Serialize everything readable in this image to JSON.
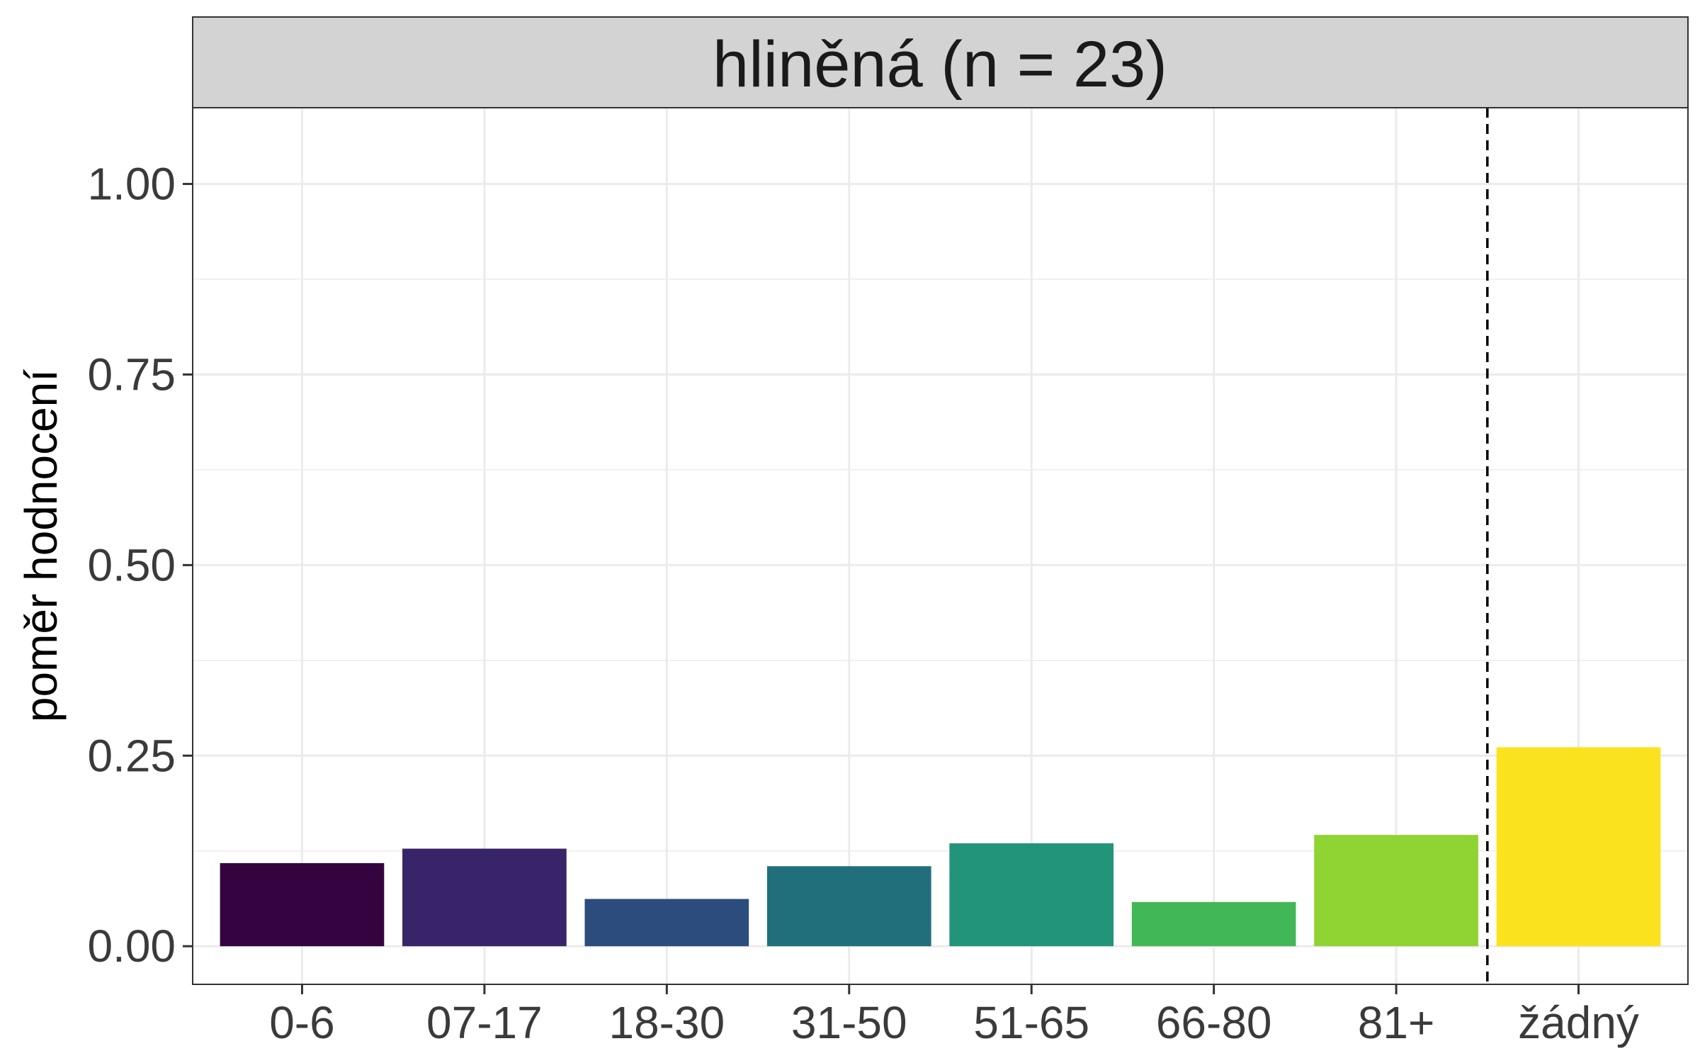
{
  "chart_data": {
    "type": "bar",
    "facet_title": "hliněná (n = 23)",
    "xlabel": "",
    "ylabel": "poměr hodnocení",
    "ylim": [
      -0.05,
      1.1
    ],
    "y_ticks": [
      "0.00",
      "0.25",
      "0.50",
      "0.75",
      "1.00"
    ],
    "y_tick_values": [
      0,
      0.25,
      0.5,
      0.75,
      1.0
    ],
    "categories": [
      "0-6",
      "07-17",
      "18-30",
      "31-50",
      "51-65",
      "66-80",
      "81+",
      "žádný"
    ],
    "values": [
      0.109,
      0.128,
      0.062,
      0.105,
      0.135,
      0.058,
      0.146,
      0.261
    ],
    "colors": [
      "#35033f",
      "#382469",
      "#2b4c7c",
      "#226f7c",
      "#22947a",
      "#42b757",
      "#8fd433",
      "#fbe21f"
    ],
    "reference_line_after_category": "81+",
    "grid": true,
    "legend": "none"
  }
}
